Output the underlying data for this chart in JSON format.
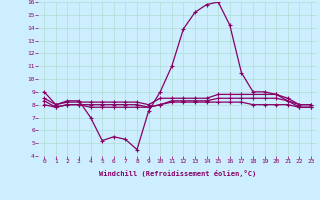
{
  "xlabel": "Windchill (Refroidissement éolien,°C)",
  "background_color": "#cceeff",
  "grid_color": "#b0ddd0",
  "line_color": "#880066",
  "hours": [
    0,
    1,
    2,
    3,
    4,
    5,
    6,
    7,
    8,
    9,
    10,
    11,
    12,
    13,
    14,
    15,
    16,
    17,
    18,
    19,
    20,
    21,
    22,
    23
  ],
  "line1": [
    9.0,
    8.0,
    8.3,
    8.3,
    7.0,
    5.2,
    5.5,
    5.3,
    4.5,
    7.5,
    9.0,
    11.0,
    13.9,
    15.2,
    15.8,
    16.0,
    14.2,
    10.5,
    9.0,
    9.0,
    8.8,
    8.3,
    8.0,
    8.0
  ],
  "line2": [
    8.5,
    8.0,
    8.2,
    8.2,
    8.2,
    8.2,
    8.2,
    8.2,
    8.2,
    8.0,
    8.5,
    8.5,
    8.5,
    8.5,
    8.5,
    8.8,
    8.8,
    8.8,
    8.8,
    8.8,
    8.8,
    8.5,
    8.0,
    8.0
  ],
  "line3": [
    8.3,
    7.8,
    8.0,
    8.0,
    7.8,
    7.8,
    7.8,
    7.8,
    7.8,
    7.8,
    8.0,
    8.2,
    8.2,
    8.2,
    8.2,
    8.2,
    8.2,
    8.2,
    8.0,
    8.0,
    8.0,
    8.0,
    7.8,
    7.8
  ],
  "line4": [
    8.0,
    7.8,
    8.0,
    8.0,
    8.0,
    8.0,
    8.0,
    8.0,
    8.0,
    7.8,
    8.0,
    8.3,
    8.3,
    8.3,
    8.3,
    8.5,
    8.5,
    8.5,
    8.5,
    8.5,
    8.5,
    8.3,
    7.8,
    7.8
  ],
  "ylim": [
    4,
    16
  ],
  "yticks": [
    4,
    5,
    6,
    7,
    8,
    9,
    10,
    11,
    12,
    13,
    14,
    15,
    16
  ],
  "marker": "+",
  "lw": 0.9,
  "ms": 3.5
}
